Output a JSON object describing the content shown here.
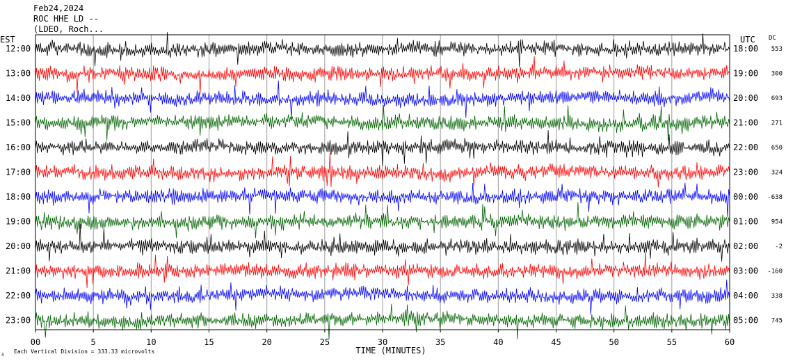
{
  "header": {
    "date": "Feb24,2024",
    "station": "ROC HHE LD --",
    "location": "(LDEO, Roch..."
  },
  "footer": {
    "xlabel": "TIME (MINUTES)",
    "scale_note": "Each Vertical Division = 333.33 microvolts",
    "corner_mark": "4"
  },
  "colors": {
    "black": "#000000",
    "red": "#ff0000",
    "blue": "#0000ff",
    "green": "#006400",
    "grid": "#9a9a9a"
  },
  "chart_data": {
    "type": "line",
    "title": "Feb24,2024",
    "left_axis_label": "EST",
    "right_axis_label": "UTC",
    "offset_column_label": "DC",
    "xlabel": "TIME (MINUTES)",
    "xlim": [
      0,
      60
    ],
    "x_ticks": [
      "00",
      "5",
      "10",
      "15",
      "20",
      "25",
      "30",
      "35",
      "40",
      "45",
      "50",
      "55",
      "60"
    ],
    "grid": true,
    "color_cycle": [
      "black",
      "red",
      "blue",
      "green"
    ],
    "rows": [
      {
        "est": "12:00",
        "utc": "18:00",
        "dc": "553",
        "color": "black"
      },
      {
        "est": "13:00",
        "utc": "19:00",
        "dc": "300",
        "color": "red"
      },
      {
        "est": "14:00",
        "utc": "20:00",
        "dc": "693",
        "color": "blue"
      },
      {
        "est": "15:00",
        "utc": "21:00",
        "dc": "271",
        "color": "green"
      },
      {
        "est": "16:00",
        "utc": "22:00",
        "dc": "650",
        "color": "black"
      },
      {
        "est": "17:00",
        "utc": "23:00",
        "dc": "324",
        "color": "red"
      },
      {
        "est": "18:00",
        "utc": "00:00",
        "dc": "-638",
        "color": "blue"
      },
      {
        "est": "19:00",
        "utc": "01:00",
        "dc": "954",
        "color": "green"
      },
      {
        "est": "20:00",
        "utc": "02:00",
        "dc": "-2",
        "color": "black"
      },
      {
        "est": "21:00",
        "utc": "03:00",
        "dc": "-160",
        "color": "red"
      },
      {
        "est": "22:00",
        "utc": "04:00",
        "dc": "338",
        "color": "blue"
      },
      {
        "est": "23:00",
        "utc": "05:00",
        "dc": "745",
        "color": "green"
      }
    ]
  }
}
